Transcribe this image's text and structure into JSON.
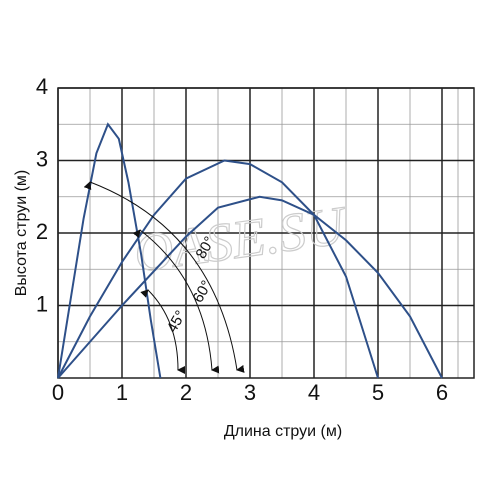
{
  "chart_data": {
    "type": "line",
    "x_label": "Длина струи (м)",
    "y_label": "Высота струи (м)",
    "xlim": [
      0,
      6.5
    ],
    "ylim": [
      0,
      4
    ],
    "xticks": [
      0,
      1,
      2,
      3,
      4,
      5,
      6
    ],
    "yticks": [
      1,
      2,
      3,
      4
    ],
    "grid": true,
    "annotations": [
      "80°",
      "60°",
      "45°"
    ],
    "watermark": "OASE.SU",
    "series": [
      {
        "color": "#2e5089",
        "x": [
          0,
          0.2,
          0.4,
          0.6,
          0.78,
          0.95,
          1.1,
          1.3,
          1.45,
          1.6
        ],
        "values": [
          0,
          1.1,
          2.2,
          3.1,
          3.5,
          3.3,
          2.7,
          1.7,
          0.8,
          0
        ]
      },
      {
        "color": "#2e5089",
        "x": [
          0,
          0.5,
          1,
          1.5,
          2,
          2.6,
          3,
          3.5,
          4,
          4.5,
          5
        ],
        "values": [
          0,
          0.85,
          1.6,
          2.25,
          2.75,
          3.0,
          2.95,
          2.7,
          2.25,
          1.4,
          0
        ]
      },
      {
        "color": "#2e5089",
        "x": [
          0,
          1,
          2,
          2.5,
          3.15,
          3.5,
          4,
          4.5,
          5,
          5.5,
          6
        ],
        "values": [
          0,
          1.0,
          1.95,
          2.35,
          2.5,
          2.45,
          2.25,
          1.9,
          1.45,
          0.85,
          0
        ]
      }
    ]
  }
}
